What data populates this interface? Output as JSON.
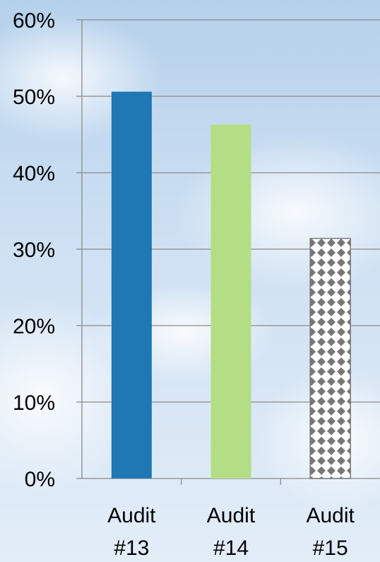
{
  "chart_data": {
    "type": "bar",
    "categories": [
      "Audit #13",
      "Audit #14",
      "Audit #15"
    ],
    "category_lines": [
      [
        "Audit",
        "#13"
      ],
      [
        "Audit",
        "#14"
      ],
      [
        "Audit",
        "#15"
      ]
    ],
    "values": [
      50.6,
      46.3,
      31.4
    ],
    "ylim": [
      0,
      60
    ],
    "yticks": [
      0,
      10,
      20,
      30,
      40,
      50,
      60
    ],
    "y_tick_labels": [
      "0%",
      "10%",
      "20%",
      "30%",
      "40%",
      "50%",
      "60%"
    ],
    "grid": true,
    "bar_colors": [
      "#1f77b4",
      "#b3de85",
      "pattern-diamond-gray"
    ],
    "title": "",
    "xlabel": "",
    "ylabel": ""
  }
}
